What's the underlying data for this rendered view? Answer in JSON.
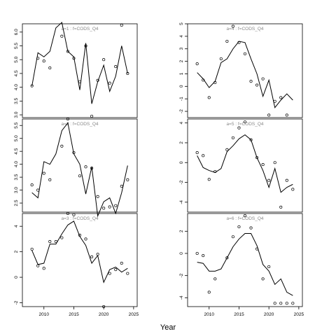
{
  "figure": {
    "xlabel": "Year"
  },
  "chart_data": [
    {
      "type": "line",
      "title": "a=1 : f=CODS_Q4",
      "x": [
        2008,
        2009,
        2010,
        2011,
        2012,
        2013,
        2014,
        2015,
        2016,
        2017,
        2018,
        2019,
        2020,
        2021,
        2022,
        2023,
        2024
      ],
      "fitted": [
        4.05,
        5.25,
        5.1,
        5.3,
        6.15,
        6.35,
        5.3,
        5.1,
        3.9,
        5.6,
        3.4,
        4.2,
        4.8,
        3.85,
        4.4,
        5.5,
        4.5
      ],
      "observed": [
        4.05,
        5.05,
        4.95,
        4.7,
        6.45,
        5.85,
        5.3,
        5.05,
        4.2,
        5.5,
        2.95,
        4.25,
        5.0,
        4.15,
        4.75,
        6.25,
        4.5
      ],
      "ylim": [
        2.9,
        6.3
      ],
      "yticks": [
        "3.0",
        "3.5",
        "4.0",
        "4.5",
        "5.0",
        "5.5",
        "6.0"
      ],
      "xticks": []
    },
    {
      "type": "line",
      "title": "a=4 : f=CODS_Q4",
      "x": [
        2008,
        2009,
        2010,
        2011,
        2012,
        2013,
        2014,
        2015,
        2016,
        2017,
        2018,
        2019,
        2020,
        2021,
        2022,
        2023,
        2024
      ],
      "fitted": [
        1.1,
        0.6,
        -0.1,
        0.4,
        1.9,
        2.2,
        3.0,
        3.6,
        3.5,
        2.2,
        1.0,
        -0.8,
        0.5,
        -1.7,
        -1.1,
        -0.6,
        -1.1
      ],
      "observed": [
        1.8,
        0.5,
        -0.9,
        0.3,
        2.2,
        3.6,
        4.8,
        3.5,
        2.6,
        0.4,
        0.1,
        0.6,
        -2.3,
        -1.2,
        -0.9,
        -2.3,
        null
      ],
      "ylim": [
        -2.5,
        5.0
      ],
      "yticks": [
        "-2",
        "-1",
        "0",
        "1",
        "2",
        "3",
        "4",
        "5"
      ],
      "xticks": []
    },
    {
      "type": "line",
      "title": "a=2 : f=CODS_Q4",
      "x": [
        2008,
        2009,
        2010,
        2011,
        2012,
        2013,
        2014,
        2015,
        2016,
        2017,
        2018,
        2019,
        2020,
        2021,
        2022,
        2023,
        2024
      ],
      "fitted": [
        2.9,
        2.7,
        4.1,
        4.0,
        4.4,
        5.3,
        5.6,
        4.4,
        4.0,
        2.85,
        3.9,
        2.0,
        2.55,
        2.7,
        2.1,
        2.9,
        3.95
      ],
      "observed": [
        3.2,
        3.0,
        3.65,
        3.4,
        null,
        4.7,
        5.75,
        4.45,
        3.55,
        3.9,
        3.85,
        2.75,
        2.3,
        2.35,
        2.4,
        3.15,
        3.4
      ],
      "ylim": [
        2.15,
        5.75
      ],
      "yticks": [
        "2.5",
        "3.0",
        "3.5",
        "4.0",
        "4.5",
        "5.0",
        "5.5"
      ],
      "xticks": []
    },
    {
      "type": "line",
      "title": "a=5 : f=CODS_Q4",
      "x": [
        2008,
        2009,
        2010,
        2011,
        2012,
        2013,
        2014,
        2015,
        2016,
        2017,
        2018,
        2019,
        2020,
        2021,
        2022,
        2023,
        2024
      ],
      "fitted": [
        0.7,
        -0.5,
        -0.8,
        -1.0,
        -0.6,
        1.1,
        1.7,
        2.4,
        2.8,
        2.3,
        0.5,
        -0.8,
        -2.5,
        -0.6,
        -3.0,
        -2.5,
        -2.2
      ],
      "observed": [
        1.0,
        0.7,
        -1.7,
        -0.9,
        null,
        1.3,
        2.5,
        3.5,
        4.1,
        2.3,
        0.5,
        -0.2,
        -1.8,
        0.0,
        -4.5,
        -1.8,
        -2.7
      ],
      "ylim": [
        -5.0,
        4.4
      ],
      "yticks": [
        "-4",
        "-2",
        "0",
        "2",
        "4"
      ],
      "xticks": []
    },
    {
      "type": "line",
      "title": "a=3 : f=CODS_Q4",
      "x": [
        2008,
        2009,
        2010,
        2011,
        2012,
        2013,
        2014,
        2015,
        2016,
        2017,
        2018,
        2019,
        2020,
        2021,
        2022,
        2023,
        2024
      ],
      "fitted": [
        2.1,
        1.0,
        1.1,
        2.6,
        2.6,
        3.4,
        4.1,
        4.4,
        3.2,
        2.5,
        1.1,
        1.7,
        -0.4,
        0.6,
        0.8,
        0.4,
        0.7
      ],
      "observed": [
        2.2,
        0.9,
        0.7,
        2.8,
        2.8,
        3.1,
        5.0,
        4.9,
        3.3,
        3.0,
        1.6,
        1.8,
        -2.3,
        0.3,
        0.6,
        1.1,
        0.3
      ],
      "ylim": [
        -2.3,
        5.0
      ],
      "yticks": [
        "-2",
        "0",
        "2",
        "4"
      ],
      "xticks": [
        "2010",
        "2015",
        "2020",
        "2025"
      ]
    },
    {
      "type": "line",
      "title": "a=6 : f=CODS_Q4",
      "x": [
        2008,
        2009,
        2010,
        2011,
        2012,
        2013,
        2014,
        2015,
        2016,
        2017,
        2018,
        2019,
        2020,
        2021,
        2022,
        2023,
        2024
      ],
      "fitted": [
        -0.8,
        -0.9,
        -1.6,
        -1.6,
        -1.4,
        -0.4,
        0.6,
        1.3,
        1.8,
        1.8,
        0.7,
        -1.0,
        -1.6,
        -2.8,
        -2.3,
        -3.5,
        -3.8
      ],
      "observed": [
        0.0,
        -0.2,
        -3.5,
        -2.3,
        null,
        -0.4,
        1.5,
        2.4,
        3.4,
        2.3,
        0.4,
        -2.3,
        -1.2,
        -4.5,
        -4.5,
        -4.5,
        -4.5
      ],
      "ylim": [
        -4.8,
        3.6
      ],
      "yticks": [
        "-4",
        "-2",
        "0",
        "2"
      ],
      "xticks": [
        "2010",
        "2015",
        "2020",
        "2025"
      ]
    }
  ]
}
